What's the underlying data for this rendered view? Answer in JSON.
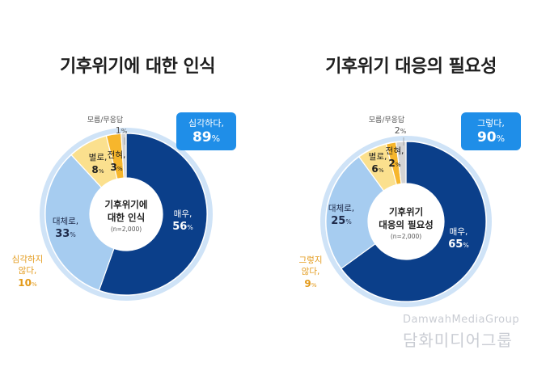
{
  "chart_data": [
    {
      "type": "pie",
      "title": "기후위기에 대한 인식",
      "center_label": [
        "기후위기에",
        "대한 인식"
      ],
      "center_note": "(n=2,000)",
      "callout": {
        "label": "심각하다,",
        "value": "89",
        "unit": "%"
      },
      "slices": [
        {
          "label": "매우,",
          "value": 56,
          "color": "#0b3f8a",
          "text_color": "#ffffff"
        },
        {
          "label": "대체로,",
          "value": 33,
          "color": "#a6ccf0",
          "text_color": "#1e2a4a"
        },
        {
          "label": "심각하지 않다,",
          "value": 10,
          "color": "#fbe08e",
          "text_color": "#e39a1a"
        },
        {
          "label": "",
          "value": 1,
          "color": "#d4d4d4",
          "text_color": "#1e1e1e"
        }
      ],
      "sub_slices": [
        {
          "label": "별로,",
          "value": 8,
          "color": "#fbe08e",
          "text_color": "#1e1e1e"
        },
        {
          "label": "전혀,",
          "value": 3,
          "color": "#f6b62c",
          "text_color": "#1e1e1e"
        }
      ],
      "extra_label": {
        "label": "모름/무응답",
        "value": "1",
        "unit": "%"
      }
    },
    {
      "type": "pie",
      "title": "기후위기 대응의 필요성",
      "center_label": [
        "기후위기",
        "대응의 필요성"
      ],
      "center_note": "(n=2,000)",
      "callout": {
        "label": "그렇다,",
        "value": "90",
        "unit": "%"
      },
      "slices": [
        {
          "label": "매우,",
          "value": 65,
          "color": "#0b3f8a",
          "text_color": "#ffffff"
        },
        {
          "label": "대체로,",
          "value": 25,
          "color": "#a6ccf0",
          "text_color": "#1e2a4a"
        },
        {
          "label": "그렇지 않다,",
          "value": 9,
          "color": "#fbe08e",
          "text_color": "#e39a1a"
        },
        {
          "label": "",
          "value": 2,
          "color": "#d4d4d4",
          "text_color": "#1e1e1e"
        }
      ],
      "sub_slices": [
        {
          "label": "별로,",
          "value": 6,
          "color": "#fbe08e",
          "text_color": "#1e1e1e"
        },
        {
          "label": "전혀,",
          "value": 2,
          "color": "#f6b62c",
          "text_color": "#1e1e1e"
        }
      ],
      "extra_label": {
        "label": "모름/무응답",
        "value": "2",
        "unit": "%"
      }
    }
  ],
  "watermark": {
    "en": "DamwahMediaGroup",
    "ko": "담화미디어그룹"
  },
  "pct_unit": "%"
}
